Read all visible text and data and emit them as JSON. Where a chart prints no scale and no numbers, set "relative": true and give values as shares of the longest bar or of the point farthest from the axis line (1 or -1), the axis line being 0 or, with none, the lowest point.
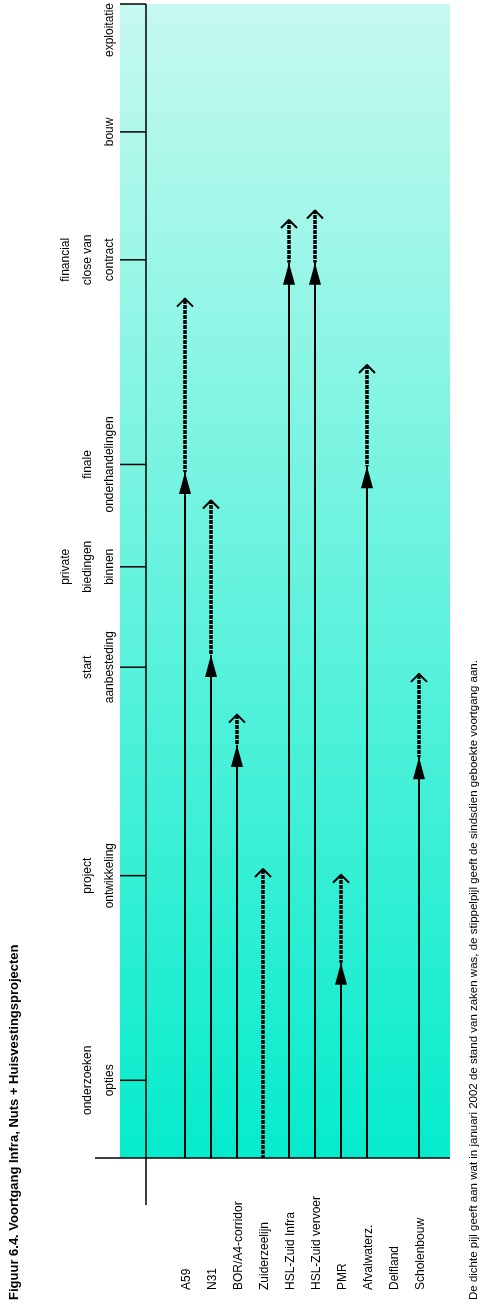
{
  "chart_data": {
    "type": "bar",
    "title": "Figuur 6.4. Voortgang Infra, Nuts + Huisvestingsprojecten",
    "categories": [
      "A59",
      "N31",
      "BOR/A4-corridor",
      "Zuiderzeelijn",
      "HSL-Zuid Infra",
      "HSL-Zuid vervoer",
      "PMR",
      "Afvalwaterz.",
      "Delfland",
      "Scholenbouw"
    ],
    "stacked": true,
    "relative": true,
    "series": [
      {
        "color": "#000000",
        "line_style": "solid",
        "values": [
          0.724,
          0.531,
          0.436,
          0,
          0.945,
          0.945,
          0.206,
          0.73,
          null,
          0.423
        ]
      },
      {
        "color": "#000000",
        "line_style": "dotted",
        "values": [
          0.183,
          0.163,
          0.032,
          0.305,
          0.045,
          0.055,
          0.093,
          0.107,
          null,
          0.088
        ]
      }
    ],
    "ref_lines": [
      {
        "axis": "y",
        "value": 0.082,
        "label": "onderzoeken\nopties"
      },
      {
        "axis": "y",
        "value": 0.298,
        "label": "project\nontwikkeling"
      },
      {
        "axis": "y",
        "value": 0.518,
        "label": "start\naanbesteding"
      },
      {
        "axis": "y",
        "value": 0.624,
        "label": "private\nbiedingen\nbinnen"
      },
      {
        "axis": "y",
        "value": 0.732,
        "label": "finale\nonderhandelingen"
      },
      {
        "axis": "y",
        "value": 0.948,
        "label": "financial\nclose van\ncontract"
      },
      {
        "axis": "y",
        "value": 1.083,
        "label": "bouw"
      },
      {
        "axis": "y",
        "value": 1.218,
        "label": "exploitatie"
      }
    ],
    "annotations": [
      "De dichte pijl geeft aan wat in januari 2002 de stand van zaken was, de stippelpijl geeft de sindsdien geboekte voortgang aan."
    ]
  }
}
